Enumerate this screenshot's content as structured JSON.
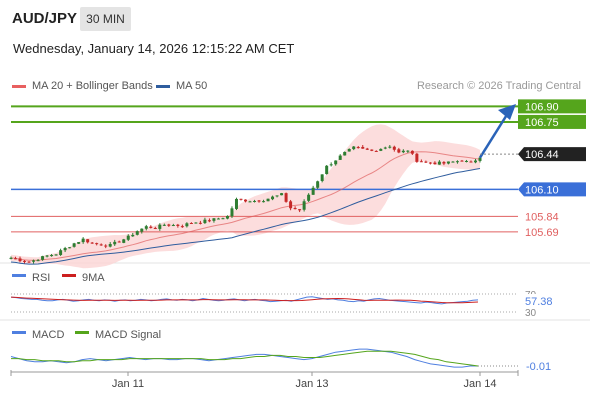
{
  "header": {
    "symbol": "AUD/JPY",
    "timeframe": "30 MIN",
    "datetime": "Wednesday, January 14, 2026 12:15:22 AM CET"
  },
  "legend": {
    "items": [
      {
        "label": "MA 20 + Bollinger Bands",
        "color": "#e86060"
      },
      {
        "label": "MA 50",
        "color": "#2f5d9e"
      }
    ],
    "credit": "Research © 2026 Trading Central"
  },
  "colors": {
    "up_candle": "#2e7d32",
    "down_candle": "#c62828",
    "resistance": "#55a51c",
    "support_blue": "#3a6fd8",
    "support_red": "#e06060",
    "bollinger_fill": "#fbd4d4",
    "ma20": "#e06060",
    "ma50": "#2f5d9e",
    "arrow": "#2a63b8",
    "rsi": "#4f7fe0",
    "rsi_ma": "#cc1f1f",
    "macd": "#4f7fe0",
    "macd_signal": "#55a51c"
  },
  "chart_data": {
    "type": "candlestick",
    "x_ticks": [
      "Jan 11",
      "Jan 13",
      "Jan 14"
    ],
    "price_range": [
      105.4,
      107.0
    ],
    "last_price": "106.44",
    "levels": [
      {
        "label": "106.90",
        "value": 106.9,
        "kind": "resistance"
      },
      {
        "label": "106.75",
        "value": 106.75,
        "kind": "resistance"
      },
      {
        "label": "106.10",
        "value": 106.1,
        "kind": "pivot"
      },
      {
        "label": "105.84",
        "value": 105.84,
        "kind": "support"
      },
      {
        "label": "105.69",
        "value": 105.69,
        "kind": "support"
      }
    ],
    "price_path": [
      [
        0,
        105.44
      ],
      [
        4,
        105.4
      ],
      [
        8,
        105.46
      ],
      [
        10,
        105.48
      ],
      [
        14,
        105.58
      ],
      [
        16,
        105.62
      ],
      [
        18,
        105.58
      ],
      [
        22,
        105.56
      ],
      [
        26,
        105.64
      ],
      [
        28,
        105.7
      ],
      [
        30,
        105.74
      ],
      [
        32,
        105.73
      ],
      [
        34,
        105.76
      ],
      [
        38,
        105.75
      ],
      [
        40,
        105.78
      ],
      [
        42,
        105.79
      ],
      [
        44,
        105.8
      ],
      [
        48,
        105.84
      ],
      [
        50,
        106.0
      ],
      [
        54,
        105.99
      ],
      [
        56,
        106.0
      ],
      [
        60,
        106.05
      ],
      [
        62,
        105.92
      ],
      [
        64,
        105.9
      ],
      [
        66,
        106.05
      ],
      [
        70,
        106.32
      ],
      [
        74,
        106.45
      ],
      [
        76,
        106.5
      ],
      [
        80,
        106.47
      ],
      [
        84,
        106.52
      ],
      [
        86,
        106.45
      ],
      [
        88,
        106.48
      ],
      [
        90,
        106.38
      ],
      [
        92,
        106.36
      ],
      [
        96,
        106.35
      ],
      [
        100,
        106.38
      ],
      [
        102,
        106.35
      ],
      [
        104,
        106.42
      ]
    ],
    "rsi": {
      "labels": [
        "RSI",
        "9MA"
      ],
      "value": "57.38",
      "ticks": [
        "70",
        "30"
      ],
      "series": [
        63,
        62,
        60,
        59,
        58,
        58,
        56,
        55,
        55,
        57,
        58,
        56,
        54,
        55,
        57,
        58,
        56,
        55,
        57,
        56,
        54,
        56,
        57,
        55,
        56,
        58,
        57,
        55,
        56,
        58,
        59,
        57,
        56,
        58,
        57,
        55,
        57,
        60,
        58,
        56,
        55,
        56,
        58,
        59,
        57,
        55,
        57,
        58,
        56,
        55,
        53,
        54,
        55,
        56,
        54,
        57,
        60,
        63,
        64,
        62,
        60,
        58,
        59,
        57,
        56,
        54,
        53,
        55,
        54,
        57,
        59,
        60,
        58,
        56,
        55,
        54,
        53,
        52,
        51,
        50,
        52,
        51,
        49,
        48,
        50,
        51,
        52,
        53,
        54,
        56,
        57
      ]
    },
    "macd": {
      "labels": [
        "MACD",
        "MACD Signal"
      ],
      "value": "-0.01",
      "macd": [
        0.08,
        0.06,
        0.04,
        0.03,
        0.03,
        0.04,
        0.03,
        0.02,
        0.03,
        0.05,
        0.06,
        0.05,
        0.04,
        0.05,
        0.06,
        0.07,
        0.06,
        0.05,
        0.06,
        0.06,
        0.05,
        0.05,
        0.06,
        0.06,
        0.05,
        0.04,
        0.05,
        0.06,
        0.07,
        0.08,
        0.09,
        0.1,
        0.1,
        0.09,
        0.08,
        0.07,
        0.06,
        0.05,
        0.06,
        0.08,
        0.1,
        0.12,
        0.13,
        0.14,
        0.15,
        0.15,
        0.14,
        0.13,
        0.12,
        0.1,
        0.08,
        0.05,
        0.03,
        0.01,
        0.0,
        -0.01,
        -0.02,
        -0.02,
        -0.01,
        -0.01
      ],
      "signal": [
        0.06,
        0.06,
        0.05,
        0.05,
        0.04,
        0.04,
        0.04,
        0.03,
        0.03,
        0.04,
        0.04,
        0.05,
        0.05,
        0.05,
        0.05,
        0.06,
        0.06,
        0.06,
        0.06,
        0.06,
        0.06,
        0.06,
        0.06,
        0.06,
        0.06,
        0.05,
        0.05,
        0.05,
        0.06,
        0.06,
        0.07,
        0.08,
        0.08,
        0.09,
        0.09,
        0.08,
        0.08,
        0.07,
        0.07,
        0.07,
        0.08,
        0.09,
        0.1,
        0.11,
        0.12,
        0.13,
        0.13,
        0.13,
        0.13,
        0.12,
        0.11,
        0.1,
        0.08,
        0.06,
        0.05,
        0.03,
        0.02,
        0.01,
        0.0,
        -0.01
      ]
    }
  }
}
